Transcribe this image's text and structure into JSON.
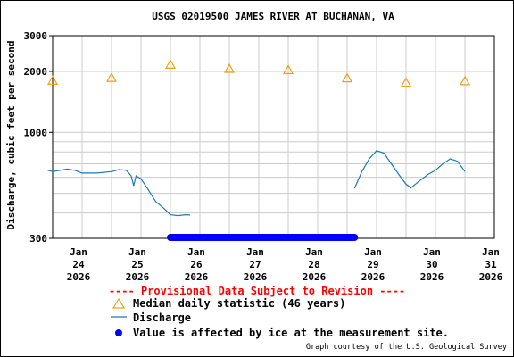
{
  "chart_data": {
    "type": "line",
    "title": "USGS 02019500 JAMES RIVER AT BUCHANAN, VA",
    "ylabel": "Discharge, cubic feet per second",
    "xlabel": "",
    "yscale": "log",
    "ylim": [
      300,
      3000
    ],
    "yticks": [
      300,
      1000,
      2000,
      3000
    ],
    "ytick_labels": [
      "300",
      "1000",
      "2000",
      "3000"
    ],
    "xlim": [
      "2026-01-24T00:00",
      "2026-01-31T12:00"
    ],
    "xticks": [
      {
        "lines": [
          "Jan",
          "24",
          "2026"
        ]
      },
      {
        "lines": [
          "Jan",
          "25",
          "2026"
        ]
      },
      {
        "lines": [
          "Jan",
          "26",
          "2026"
        ]
      },
      {
        "lines": [
          "Jan",
          "27",
          "2026"
        ]
      },
      {
        "lines": [
          "Jan",
          "28",
          "2026"
        ]
      },
      {
        "lines": [
          "Jan",
          "29",
          "2026"
        ]
      },
      {
        "lines": [
          "Jan",
          "30",
          "2026"
        ]
      },
      {
        "lines": [
          "Jan",
          "31",
          "2026"
        ]
      }
    ],
    "grid": true,
    "series": [
      {
        "name": "Discharge",
        "color": "#1f77b4",
        "points": [
          [
            "2026-01-23T22:00",
            650
          ],
          [
            "2026-01-24T00:00",
            640
          ],
          [
            "2026-01-24T03:00",
            650
          ],
          [
            "2026-01-24T06:00",
            660
          ],
          [
            "2026-01-24T09:00",
            650
          ],
          [
            "2026-01-24T12:00",
            630
          ],
          [
            "2026-01-24T18:00",
            630
          ],
          [
            "2026-01-25T00:00",
            640
          ],
          [
            "2026-01-25T03:00",
            655
          ],
          [
            "2026-01-25T06:00",
            650
          ],
          [
            "2026-01-25T08:00",
            610
          ],
          [
            "2026-01-25T09:00",
            545
          ],
          [
            "2026-01-25T10:00",
            610
          ],
          [
            "2026-01-25T12:00",
            590
          ],
          [
            "2026-01-25T15:00",
            520
          ],
          [
            "2026-01-25T18:00",
            455
          ],
          [
            "2026-01-25T21:00",
            425
          ],
          [
            "2026-01-26T00:00",
            392
          ],
          [
            "2026-01-26T03:00",
            388
          ],
          [
            "2026-01-26T06:00",
            392
          ],
          [
            "2026-01-26T08:00",
            391
          ],
          [
            "2026-01-29T03:00",
            530
          ],
          [
            "2026-01-29T06:00",
            640
          ],
          [
            "2026-01-29T09:00",
            740
          ],
          [
            "2026-01-29T12:00",
            812
          ],
          [
            "2026-01-29T15:00",
            790
          ],
          [
            "2026-01-29T18:00",
            700
          ],
          [
            "2026-01-29T21:00",
            620
          ],
          [
            "2026-01-30T00:00",
            555
          ],
          [
            "2026-01-30T02:00",
            532
          ],
          [
            "2026-01-30T05:00",
            570
          ],
          [
            "2026-01-30T09:00",
            620
          ],
          [
            "2026-01-30T12:00",
            650
          ],
          [
            "2026-01-30T15:00",
            700
          ],
          [
            "2026-01-30T18:00",
            740
          ],
          [
            "2026-01-30T21:00",
            720
          ],
          [
            "2026-01-31T00:00",
            640
          ]
        ]
      },
      {
        "name": "Median daily statistic (46 years)",
        "color": "#e8a317",
        "points": [
          [
            "2026-01-24T00:00",
            1800
          ],
          [
            "2026-01-25T00:00",
            1860
          ],
          [
            "2026-01-26T00:00",
            2160
          ],
          [
            "2026-01-27T00:00",
            2060
          ],
          [
            "2026-01-28T00:00",
            2030
          ],
          [
            "2026-01-29T00:00",
            1850
          ],
          [
            "2026-01-30T00:00",
            1760
          ],
          [
            "2026-01-31T00:00",
            1790
          ]
        ]
      }
    ],
    "ice_affected": {
      "name": "Value is affected by ice at the measurement site.",
      "color": "#0000ff",
      "from": "2026-01-26T00:00",
      "to": "2026-01-29T03:00",
      "value": 300
    }
  },
  "legend": {
    "provisional": "---- Provisional Data Subject to Revision ----",
    "median_label": "Median daily statistic (46 years)",
    "discharge_label": "Discharge",
    "ice_label": "Value is affected by ice at the measurement site."
  },
  "courtesy": "Graph courtesy of the U.S. Geological Survey"
}
